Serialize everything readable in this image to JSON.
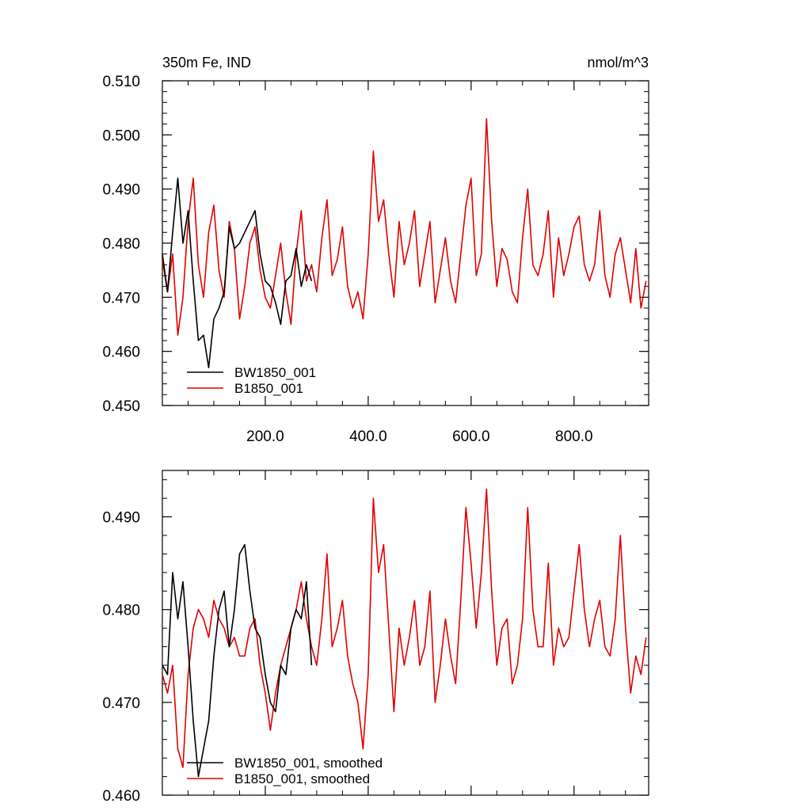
{
  "chart_data": [
    {
      "type": "line",
      "title": "350m Fe, IND",
      "units": "nmol/m^3",
      "xlim": [
        0,
        945
      ],
      "ylim": [
        0.45,
        0.51
      ],
      "xticks": [
        200,
        400,
        600,
        800
      ],
      "xtick_labels": [
        "200.0",
        "400.0",
        "600.0",
        "800.0"
      ],
      "yticks": [
        0.45,
        0.46,
        0.47,
        0.48,
        0.49,
        0.5,
        0.51
      ],
      "ytick_labels": [
        "0.450",
        "0.460",
        "0.470",
        "0.480",
        "0.490",
        "0.500",
        "0.510"
      ],
      "legend_placement": "bottom-left",
      "grid": false,
      "series": [
        {
          "name": "BW1850_001",
          "color": "#000000",
          "x": [
            0,
            10,
            20,
            30,
            40,
            50,
            60,
            70,
            80,
            90,
            100,
            110,
            120,
            130,
            140,
            150,
            160,
            170,
            180,
            190,
            200,
            210,
            220,
            230,
            240,
            250,
            260,
            270,
            280,
            290
          ],
          "y": [
            0.478,
            0.471,
            0.482,
            0.492,
            0.48,
            0.486,
            0.473,
            0.462,
            0.463,
            0.457,
            0.466,
            0.468,
            0.471,
            0.483,
            0.479,
            0.48,
            0.482,
            0.484,
            0.486,
            0.478,
            0.473,
            0.472,
            0.469,
            0.465,
            0.473,
            0.474,
            0.479,
            0.472,
            0.476,
            0.473
          ]
        },
        {
          "name": "B1850_001",
          "color": "#e00000",
          "x": [
            0,
            10,
            20,
            30,
            40,
            50,
            60,
            70,
            80,
            90,
            100,
            110,
            120,
            130,
            140,
            150,
            160,
            170,
            180,
            190,
            200,
            210,
            220,
            230,
            240,
            250,
            260,
            270,
            280,
            290,
            300,
            310,
            320,
            330,
            340,
            350,
            360,
            370,
            380,
            390,
            400,
            410,
            420,
            430,
            440,
            450,
            460,
            470,
            480,
            490,
            500,
            510,
            520,
            530,
            540,
            550,
            560,
            570,
            580,
            590,
            600,
            610,
            620,
            630,
            640,
            650,
            660,
            670,
            680,
            690,
            700,
            710,
            720,
            730,
            740,
            750,
            760,
            770,
            780,
            790,
            800,
            810,
            820,
            830,
            840,
            850,
            860,
            870,
            880,
            890,
            900,
            910,
            920,
            930,
            940
          ],
          "y": [
            0.477,
            0.471,
            0.478,
            0.463,
            0.47,
            0.484,
            0.492,
            0.476,
            0.47,
            0.482,
            0.487,
            0.475,
            0.47,
            0.484,
            0.479,
            0.466,
            0.472,
            0.48,
            0.483,
            0.475,
            0.47,
            0.468,
            0.474,
            0.48,
            0.471,
            0.465,
            0.478,
            0.486,
            0.473,
            0.476,
            0.471,
            0.481,
            0.488,
            0.474,
            0.477,
            0.483,
            0.472,
            0.468,
            0.471,
            0.466,
            0.478,
            0.497,
            0.484,
            0.488,
            0.478,
            0.47,
            0.484,
            0.476,
            0.48,
            0.486,
            0.472,
            0.478,
            0.484,
            0.469,
            0.475,
            0.481,
            0.473,
            0.469,
            0.478,
            0.487,
            0.492,
            0.474,
            0.478,
            0.503,
            0.484,
            0.472,
            0.479,
            0.477,
            0.471,
            0.469,
            0.481,
            0.49,
            0.476,
            0.474,
            0.478,
            0.486,
            0.47,
            0.481,
            0.474,
            0.478,
            0.483,
            0.485,
            0.476,
            0.473,
            0.476,
            0.486,
            0.474,
            0.47,
            0.478,
            0.481,
            0.475,
            0.469,
            0.479,
            0.468,
            0.473
          ]
        }
      ]
    },
    {
      "type": "line",
      "xlim": [
        0,
        945
      ],
      "ylim": [
        0.46,
        0.495
      ],
      "yticks": [
        0.46,
        0.47,
        0.48,
        0.49
      ],
      "ytick_labels": [
        "0.460",
        "0.470",
        "0.480",
        "0.490"
      ],
      "legend_placement": "bottom-left",
      "grid": false,
      "series": [
        {
          "name": "BW1850_001, smoothed",
          "color": "#000000",
          "x": [
            0,
            10,
            20,
            30,
            40,
            50,
            60,
            70,
            80,
            90,
            100,
            110,
            120,
            130,
            140,
            150,
            160,
            170,
            180,
            190,
            200,
            210,
            220,
            230,
            240,
            250,
            260,
            270,
            280,
            290
          ],
          "y": [
            0.474,
            0.473,
            0.484,
            0.479,
            0.483,
            0.476,
            0.468,
            0.462,
            0.465,
            0.468,
            0.475,
            0.48,
            0.482,
            0.476,
            0.48,
            0.486,
            0.487,
            0.482,
            0.478,
            0.477,
            0.473,
            0.47,
            0.469,
            0.474,
            0.473,
            0.478,
            0.48,
            0.479,
            0.483,
            0.474
          ]
        },
        {
          "name": "B1850_001, smoothed",
          "color": "#e00000",
          "x": [
            0,
            10,
            20,
            30,
            40,
            50,
            60,
            70,
            80,
            90,
            100,
            110,
            120,
            130,
            140,
            150,
            160,
            170,
            180,
            190,
            200,
            210,
            220,
            230,
            240,
            250,
            260,
            270,
            280,
            290,
            300,
            310,
            320,
            330,
            340,
            350,
            360,
            370,
            380,
            390,
            400,
            410,
            420,
            430,
            440,
            450,
            460,
            470,
            480,
            490,
            500,
            510,
            520,
            530,
            540,
            550,
            560,
            570,
            580,
            590,
            600,
            610,
            620,
            630,
            640,
            650,
            660,
            670,
            680,
            690,
            700,
            710,
            720,
            730,
            740,
            750,
            760,
            770,
            780,
            790,
            800,
            810,
            820,
            830,
            840,
            850,
            860,
            870,
            880,
            890,
            900,
            910,
            920,
            930,
            940
          ],
          "y": [
            0.473,
            0.471,
            0.474,
            0.465,
            0.463,
            0.473,
            0.478,
            0.48,
            0.479,
            0.477,
            0.481,
            0.479,
            0.478,
            0.476,
            0.477,
            0.475,
            0.475,
            0.478,
            0.479,
            0.474,
            0.471,
            0.467,
            0.471,
            0.474,
            0.476,
            0.478,
            0.48,
            0.483,
            0.479,
            0.476,
            0.474,
            0.479,
            0.486,
            0.476,
            0.478,
            0.481,
            0.475,
            0.472,
            0.47,
            0.465,
            0.473,
            0.492,
            0.484,
            0.487,
            0.478,
            0.469,
            0.478,
            0.474,
            0.477,
            0.481,
            0.474,
            0.476,
            0.482,
            0.47,
            0.474,
            0.479,
            0.475,
            0.472,
            0.481,
            0.491,
            0.485,
            0.478,
            0.484,
            0.493,
            0.482,
            0.474,
            0.478,
            0.479,
            0.472,
            0.474,
            0.479,
            0.491,
            0.48,
            0.476,
            0.476,
            0.485,
            0.474,
            0.478,
            0.476,
            0.477,
            0.482,
            0.487,
            0.48,
            0.476,
            0.479,
            0.481,
            0.476,
            0.475,
            0.479,
            0.488,
            0.478,
            0.471,
            0.475,
            0.473,
            0.477
          ]
        }
      ]
    }
  ]
}
